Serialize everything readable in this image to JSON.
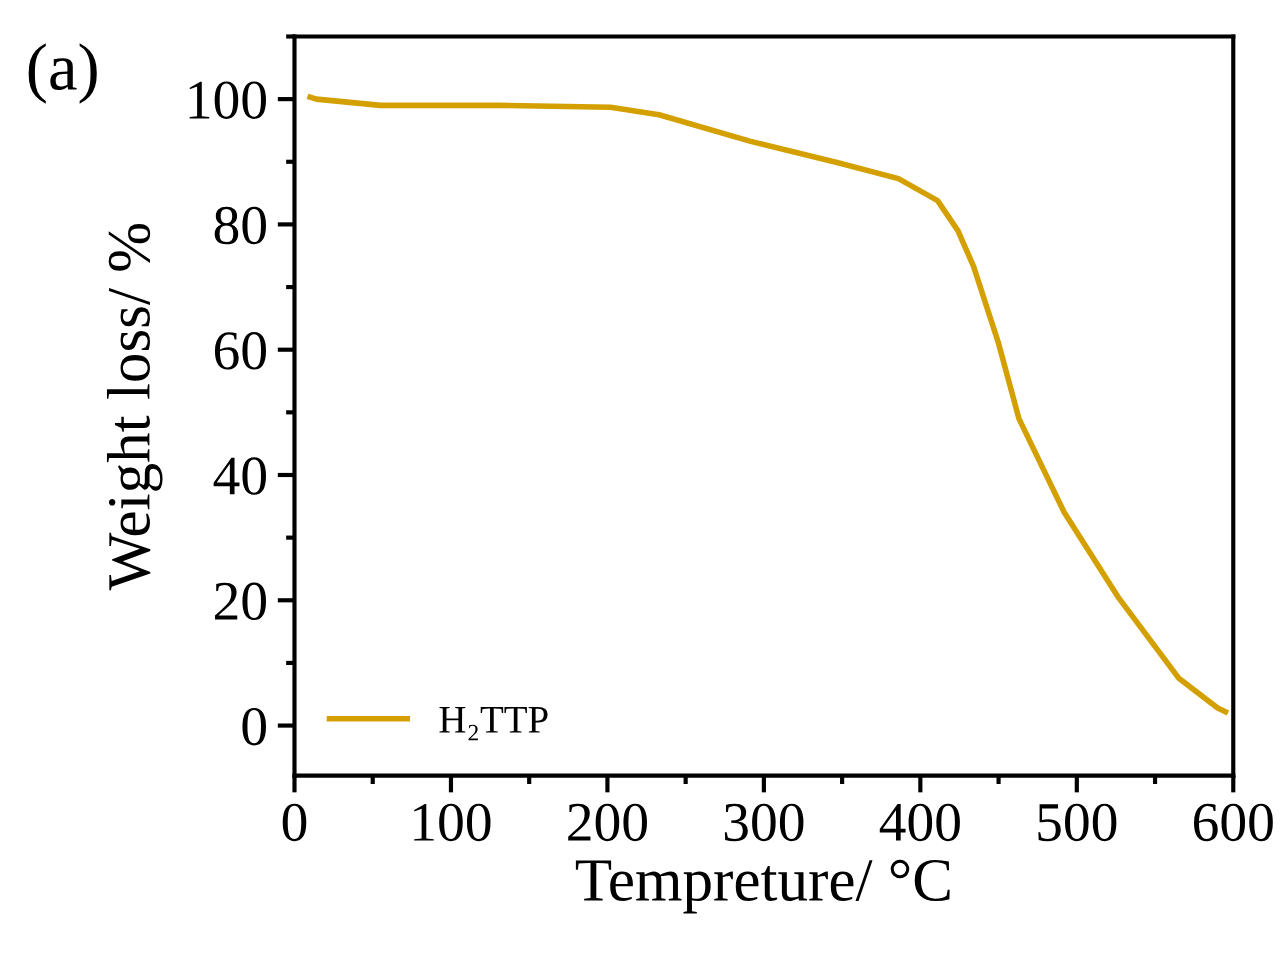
{
  "chart_data": {
    "type": "line",
    "xlabel": "Tempreture/ °C",
    "ylabel": "Weight loss/ %",
    "annotations": [
      "(a)"
    ],
    "series": [
      {
        "name": "H₂TTP",
        "color": "#d4a000",
        "x": [
          10,
          14,
          55,
          131,
          202,
          233,
          291,
          348,
          386,
          411,
          424,
          434,
          450,
          463,
          492,
          527,
          565,
          590,
          595
        ],
        "values": [
          100.3,
          100,
          99,
          99,
          98.7,
          97.5,
          93.3,
          89.8,
          87.3,
          83.8,
          79,
          73.3,
          61,
          49,
          34,
          20.3,
          7.6,
          2.8,
          2.2
        ]
      }
    ],
    "xlim": [
      0,
      600
    ],
    "xticks": [
      0,
      100,
      200,
      300,
      400,
      500,
      600
    ],
    "ylim": [
      -8,
      110
    ],
    "yticks": [
      0,
      20,
      40,
      60,
      80,
      100
    ],
    "legend": "bottom left",
    "grid": false,
    "marker": "none",
    "line_style": "solid"
  }
}
